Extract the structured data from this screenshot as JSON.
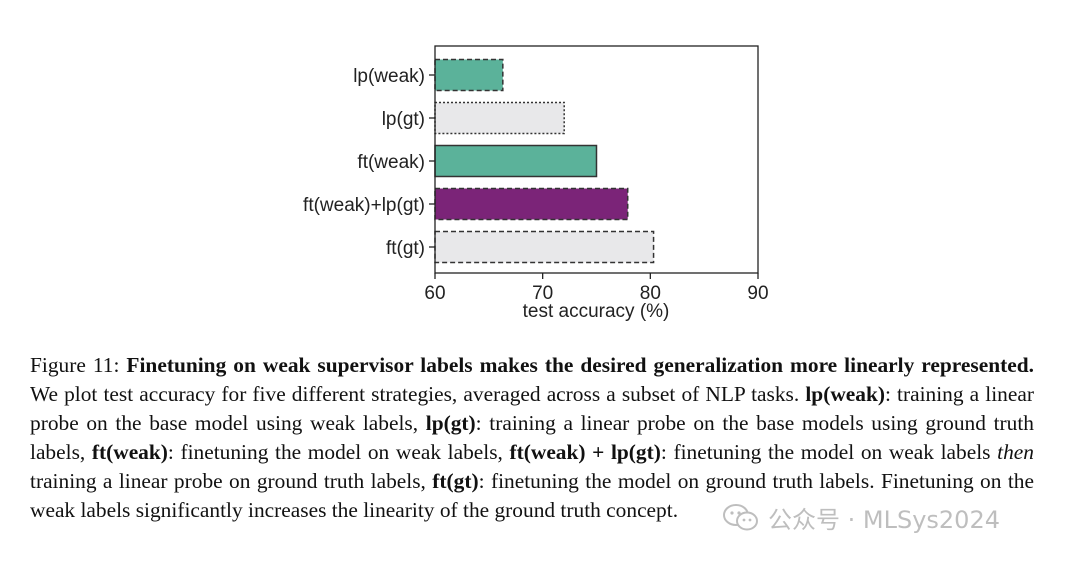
{
  "chart_data": {
    "type": "bar",
    "orientation": "horizontal",
    "categories": [
      "lp(weak)",
      "lp(gt)",
      "ft(weak)",
      "ft(weak)+lp(gt)",
      "ft(gt)"
    ],
    "values": [
      66.3,
      72.0,
      75.0,
      77.9,
      80.3
    ],
    "colors": [
      "#5bb29a",
      "#e8e8ea",
      "#5bb29a",
      "#7b2478",
      "#e8e8ea"
    ],
    "edge_styles": [
      "dashed",
      "dotted",
      "solid",
      "dashed",
      "dashed"
    ],
    "xlabel": "test accuracy (%)",
    "xlim": [
      60,
      90
    ],
    "xticks": [
      "60",
      "70",
      "80",
      "90"
    ],
    "grid": false
  },
  "caption": {
    "fig_label": "Figure 11:",
    "bold_title": "Finetuning on weak supervisor labels makes the desired generalization more linearly represented.",
    "text_1": "We plot test accuracy for five different strategies, averaged across a subset of NLP tasks.",
    "term_1": "lp(weak)",
    "desc_1": ": training a linear probe on the base model using weak labels,",
    "term_2": "lp(gt)",
    "desc_2": ": training a linear probe on the base models using ground truth labels,",
    "term_3": "ft(weak)",
    "desc_3": ": finetuning the model on weak labels,",
    "term_4": "ft(weak) + lp(gt)",
    "desc_4a": ": finetuning the model on weak labels",
    "desc_4_italic": "then",
    "desc_4b": "training a linear probe on ground truth labels,",
    "term_5": "ft(gt)",
    "desc_5": ": finetuning the model on ground truth labels. Finetuning on the weak labels significantly increases the linearity of the ground truth concept."
  },
  "watermark": {
    "text": "公众号 · MLSys2024",
    "icon": "wechat-icon"
  }
}
